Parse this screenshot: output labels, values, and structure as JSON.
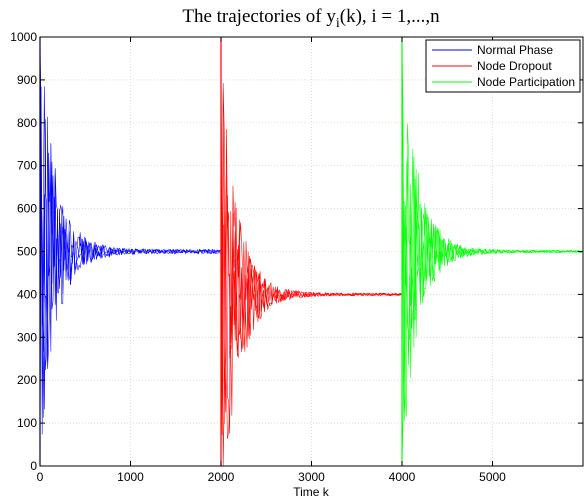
{
  "chart_data": {
    "type": "line",
    "title": {
      "prefix": "The trajectories of y",
      "subscript": "i",
      "suffix": "(k), i = 1,...,n"
    },
    "xlabel": "Time k",
    "ylabel": "",
    "xlim": [
      0,
      6000
    ],
    "ylim": [
      0,
      1000
    ],
    "x_ticks": [
      0,
      1000,
      2000,
      3000,
      4000,
      5000
    ],
    "y_ticks": [
      0,
      100,
      200,
      300,
      400,
      500,
      600,
      700,
      800,
      900,
      1000
    ],
    "grid": true,
    "legend_position": "top-right",
    "series": [
      {
        "name": "Normal Phase",
        "color": "#0000ff",
        "x_range": [
          0,
          2000
        ],
        "start_value": 0,
        "steady_value": 500,
        "initial_spread": 500,
        "final_spread": 5
      },
      {
        "name": "Node Dropout",
        "color": "#ff0000",
        "x_range": [
          2000,
          4000
        ],
        "start_value": 1000,
        "steady_value": 400,
        "initial_spread": 600,
        "final_spread": 3
      },
      {
        "name": "Node Participation",
        "color": "#00ff00",
        "x_range": [
          4000,
          6000
        ],
        "start_value": 0,
        "steady_value": 500,
        "initial_spread": 500,
        "final_spread": 3
      }
    ]
  }
}
